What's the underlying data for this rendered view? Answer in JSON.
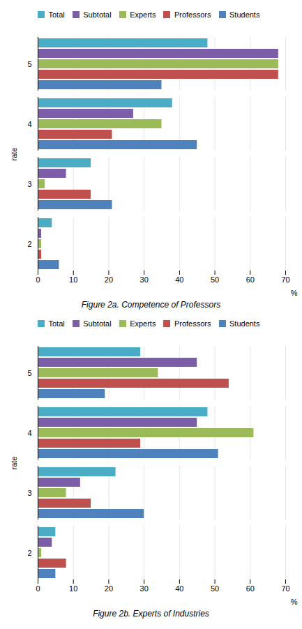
{
  "chart_data": [
    {
      "type": "bar",
      "orientation": "horizontal",
      "title": "Figure 2a. Competence of Professors",
      "xlabel": "%",
      "ylabel": "rate",
      "categories": [
        "2",
        "3",
        "4",
        "5"
      ],
      "series": [
        {
          "name": "Total",
          "color": "#4BACC6",
          "values": [
            4,
            15,
            38,
            48
          ]
        },
        {
          "name": "Subtotal",
          "color": "#7B5EA7",
          "values": [
            1,
            8,
            27,
            68
          ]
        },
        {
          "name": "Experts",
          "color": "#9BBB59",
          "values": [
            1,
            2,
            35,
            68
          ]
        },
        {
          "name": "Professors",
          "color": "#C0504D",
          "values": [
            1,
            15,
            21,
            68
          ]
        },
        {
          "name": "Students",
          "color": "#4F81BD",
          "values": [
            6,
            21,
            45,
            35
          ]
        }
      ],
      "xlim": [
        0,
        70
      ],
      "xticks": [
        0,
        10,
        20,
        30,
        40,
        50,
        60,
        70
      ],
      "grid": true,
      "legend": "upper left"
    },
    {
      "type": "bar",
      "orientation": "horizontal",
      "title": "Figure 2b. Experts of Industries",
      "xlabel": "%",
      "ylabel": "rate",
      "categories": [
        "2",
        "3",
        "4",
        "5"
      ],
      "series": [
        {
          "name": "Total",
          "color": "#4BACC6",
          "values": [
            5,
            22,
            48,
            29
          ]
        },
        {
          "name": "Subtotal",
          "color": "#7B5EA7",
          "values": [
            4,
            12,
            45,
            45
          ]
        },
        {
          "name": "Experts",
          "color": "#9BBB59",
          "values": [
            1,
            8,
            61,
            34
          ]
        },
        {
          "name": "Professors",
          "color": "#C0504D",
          "values": [
            8,
            15,
            29,
            54
          ]
        },
        {
          "name": "Students",
          "color": "#4F81BD",
          "values": [
            5,
            30,
            51,
            19
          ]
        }
      ],
      "xlim": [
        0,
        70
      ],
      "xticks": [
        0,
        10,
        20,
        30,
        40,
        50,
        60,
        70
      ],
      "grid": true,
      "legend": "upper left"
    }
  ]
}
